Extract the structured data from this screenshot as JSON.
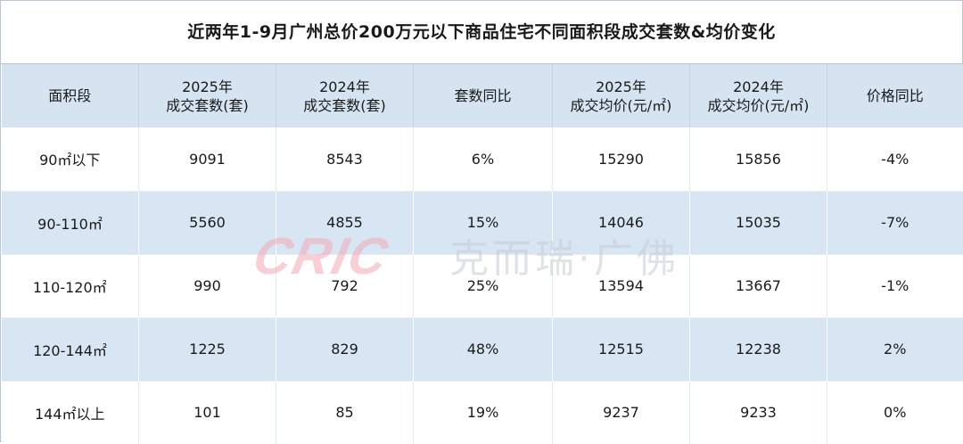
{
  "title": "近两年1-9月广州总价200万元以下商品住宅不同面积段成交套数&均价变化",
  "headers": [
    [
      "面积段"
    ],
    [
      "2025年",
      "成交套数(套)"
    ],
    [
      "2024年",
      "成交套数(套)"
    ],
    [
      "套数同比"
    ],
    [
      "2025年",
      "成交均价(元/㎡)"
    ],
    [
      "2024年",
      "成交均价(元/㎡)"
    ],
    [
      "价格同比"
    ]
  ],
  "rows": [
    [
      "90㎡以下",
      "9091",
      "8543",
      "6%",
      "15290",
      "15856",
      "-4%"
    ],
    [
      "90-110㎡",
      "5560",
      "4855",
      "15%",
      "14046",
      "15035",
      "-7%"
    ],
    [
      "110-120㎡",
      "990",
      "792",
      "25%",
      "13594",
      "13667",
      "-1%"
    ],
    [
      "120-144㎡",
      "1225",
      "829",
      "48%",
      "12515",
      "12238",
      "2%"
    ],
    [
      "144㎡以上",
      "101",
      "85",
      "19%",
      "9237",
      "9233",
      "0%"
    ]
  ],
  "watermark": {
    "logo_text": "CRIC",
    "brand_text": "克而瑞·广佛"
  },
  "colors": {
    "header_bg": "#d6e4f2",
    "stripe_bg": "#d8e6f3",
    "watermark_logo": "#f3a9b4",
    "watermark_text": "#c7ccd3"
  }
}
